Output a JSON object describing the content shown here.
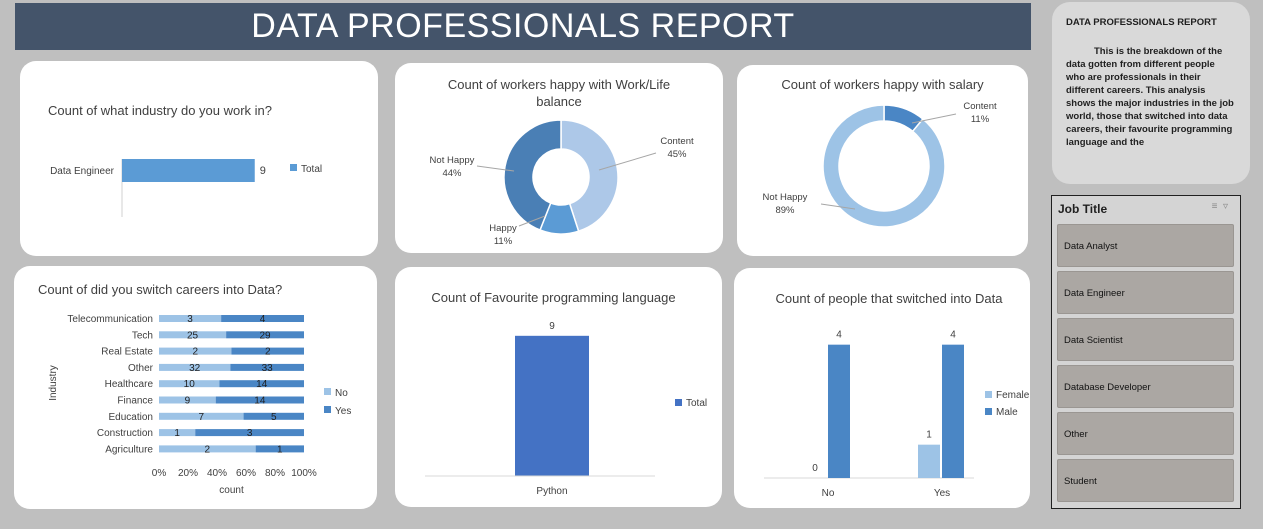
{
  "report_title": "DATA PROFESSIONALS  REPORT",
  "side_panel": {
    "title": "DATA PROFESSIONALS REPORT",
    "body": "This is the breakdown of the data gotten from different people who are professionals in their different careers. This analysis shows the major industries in the job world, those that switched into data careers, their favourite programming language and the"
  },
  "slicer": {
    "title": "Job Title",
    "items": [
      "Data Analyst",
      "Data Engineer",
      "Data Scientist",
      "Database Developer",
      "Other",
      "Student"
    ]
  },
  "colors": {
    "banner": "#44546a",
    "light_blue": "#9dc3e6",
    "mid_blue": "#5b9bd5",
    "dark_blue": "#4472c4",
    "steel_blue": "#2e75b6"
  },
  "chart_data": [
    {
      "id": "industry",
      "type": "bar",
      "title": "Count of what industry do you work in?",
      "categories": [
        "Data Engineer"
      ],
      "series": [
        {
          "name": "Total",
          "values": [
            9
          ]
        }
      ]
    },
    {
      "id": "worklife",
      "type": "pie",
      "title": "Count of workers happy with Work/Life balance",
      "slices": [
        {
          "label": "Content",
          "percent": "45%",
          "value": 45,
          "color": "#adc8e8"
        },
        {
          "label": "Happy",
          "percent": "11%",
          "value": 11,
          "color": "#5b9bd5"
        },
        {
          "label": "Not Happy",
          "percent": "44%",
          "value": 44,
          "color": "#4a7fb5"
        }
      ]
    },
    {
      "id": "salary",
      "type": "pie",
      "title": "Count of workers happy with salary",
      "slices": [
        {
          "label": "Content",
          "percent": "11%",
          "value": 11,
          "color": "#4a86c5"
        },
        {
          "label": "Not Happy",
          "percent": "89%",
          "value": 89,
          "color": "#9dc3e6"
        }
      ]
    },
    {
      "id": "switch_industry",
      "type": "bar",
      "stacked_percent": true,
      "title": "Count of did you switch careers into Data?",
      "ylabel": "Industry",
      "xlabel": "count",
      "xticks": [
        "0%",
        "20%",
        "40%",
        "60%",
        "80%",
        "100%"
      ],
      "categories": [
        "Telecommunication",
        "Tech",
        "Real Estate",
        "Other",
        "Healthcare",
        "Finance",
        "Education",
        "Construction",
        "Agriculture"
      ],
      "series": [
        {
          "name": "No",
          "values": [
            3,
            25,
            2,
            32,
            10,
            9,
            7,
            1,
            2
          ],
          "color": "#9dc3e6"
        },
        {
          "name": "Yes",
          "values": [
            4,
            29,
            2,
            33,
            14,
            14,
            5,
            3,
            1
          ],
          "color": "#4a86c5"
        }
      ]
    },
    {
      "id": "language",
      "type": "bar",
      "title": "Count of Favourite programming language",
      "categories": [
        "Python"
      ],
      "series": [
        {
          "name": "Total",
          "values": [
            9
          ],
          "color": "#4472c4"
        }
      ]
    },
    {
      "id": "switched",
      "type": "bar",
      "title": "Count of people that switched into Data",
      "categories": [
        "No",
        "Yes"
      ],
      "series": [
        {
          "name": "Female",
          "values": [
            0,
            1
          ],
          "color": "#9dc3e6"
        },
        {
          "name": "Male",
          "values": [
            4,
            4
          ],
          "color": "#4a86c5"
        }
      ]
    }
  ]
}
